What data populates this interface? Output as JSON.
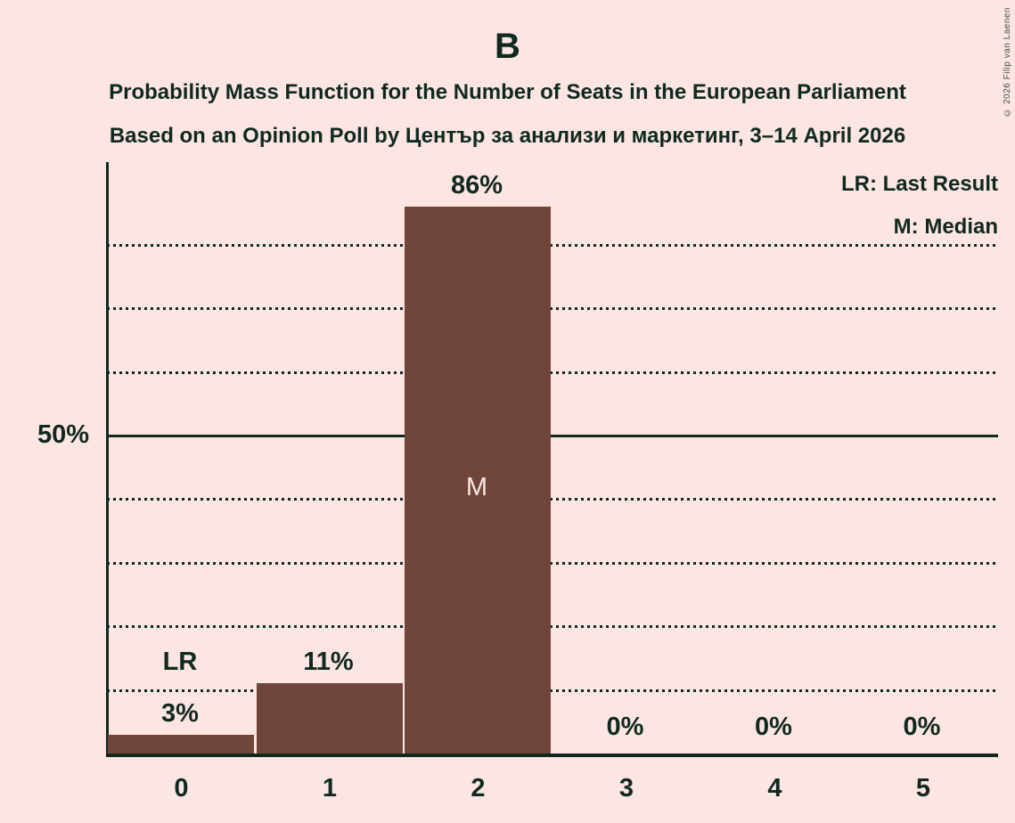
{
  "header": {
    "title": "B",
    "subtitle_line1": "Probability Mass Function for the Number of Seats in the European Parliament",
    "subtitle_line2": "Based on an Opinion Poll by Център за анализи и маркетинг, 3–14 April 2026"
  },
  "copyright": "© 2026 Filip van Laenen",
  "legend": {
    "lr_label": "LR: Last Result",
    "m_label": "M: Median"
  },
  "y_axis": {
    "label": "50%"
  },
  "chart_data": {
    "type": "bar",
    "title": "Probability Mass Function for the Number of Seats in the European Parliament",
    "subtitle": "Based on an Opinion Poll by Център за анализи и маркетинг, 3–14 April 2026",
    "categories": [
      "0",
      "1",
      "2",
      "3",
      "4",
      "5"
    ],
    "values": [
      3,
      11,
      86,
      0,
      0,
      0
    ],
    "bar_labels": [
      "3%",
      "11%",
      "86%",
      "0%",
      "0%",
      "0%"
    ],
    "annotations": [
      {
        "index": 0,
        "text": "LR",
        "position": "above"
      },
      {
        "index": 2,
        "text": "M",
        "position": "inside"
      }
    ],
    "ytick_labels": [
      "50%"
    ],
    "ylim": [
      0,
      93
    ],
    "gridlines_pct": [
      10,
      20,
      30,
      40,
      50,
      60,
      70,
      80
    ],
    "grid_style": "dotted horizontal lines, solid line at 50%",
    "legend_position": "top-right",
    "legend_entries": [
      "LR: Last Result",
      "M: Median"
    ],
    "colors": {
      "background": "#fce5e3",
      "bar": "#6f4639",
      "text": "#10291e",
      "median_label": "#fce5e3"
    }
  }
}
